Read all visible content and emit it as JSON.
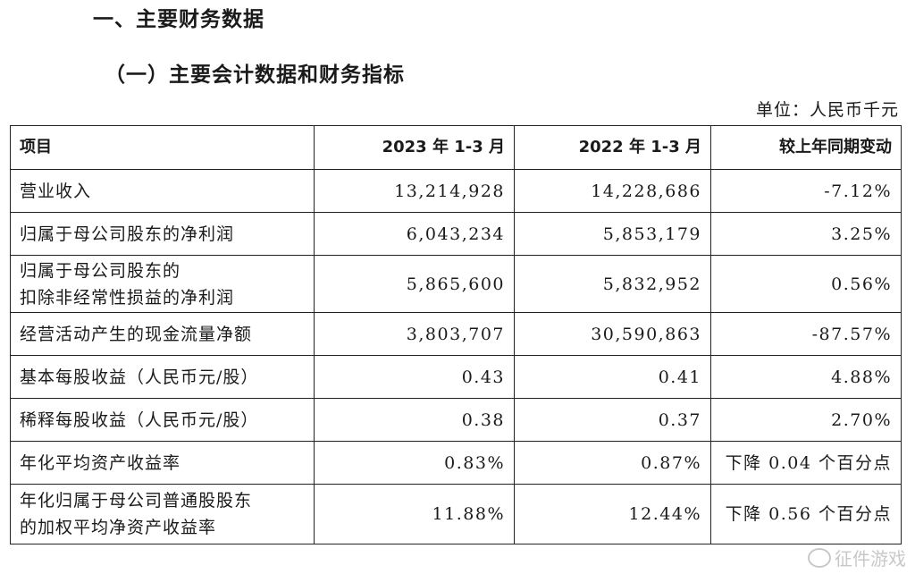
{
  "headings": {
    "section": "一、主要财务数据",
    "subsection": "（一）主要会计数据和财务指标"
  },
  "unit": "单位：人民币千元",
  "table": {
    "headers": [
      "项目",
      "2023 年 1-3 月",
      "2022 年 1-3 月",
      "较上年同期变动"
    ],
    "rows": [
      {
        "item": [
          "营业收入"
        ],
        "y2023": "13,214,928",
        "y2022": "14,228,686",
        "change": "-7.12%"
      },
      {
        "item": [
          "归属于母公司股东的净利润"
        ],
        "y2023": "6,043,234",
        "y2022": "5,853,179",
        "change": "3.25%"
      },
      {
        "item": [
          "归属于母公司股东的",
          "扣除非经常性损益的净利润"
        ],
        "y2023": "5,865,600",
        "y2022": "5,832,952",
        "change": "0.56%"
      },
      {
        "item": [
          "经营活动产生的现金流量净额"
        ],
        "y2023": "3,803,707",
        "y2022": "30,590,863",
        "change": "-87.57%"
      },
      {
        "item": [
          "基本每股收益（人民币元/股）"
        ],
        "y2023": "0.43",
        "y2022": "0.41",
        "change": "4.88%"
      },
      {
        "item": [
          "稀释每股收益（人民币元/股）"
        ],
        "y2023": "0.38",
        "y2022": "0.37",
        "change": "2.70%"
      },
      {
        "item": [
          "年化平均资产收益率"
        ],
        "y2023": "0.83%",
        "y2022": "0.87%",
        "change": "下降 0.04 个百分点"
      },
      {
        "item": [
          "年化归属于母公司普通股股东",
          "的加权平均净资产收益率"
        ],
        "y2023": "11.88%",
        "y2022": "12.44%",
        "change": "下降 0.56 个百分点"
      }
    ]
  },
  "watermark": "征件游戏"
}
